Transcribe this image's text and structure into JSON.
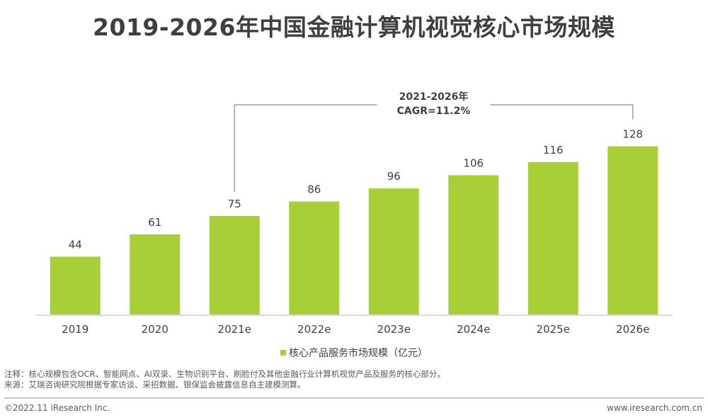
{
  "title": "2019-2026年中国金融计算机视觉核心市场规模",
  "chart_data": {
    "type": "bar",
    "title": "2019-2026年中国金融计算机视觉核心市场规模",
    "categories": [
      "2019",
      "2020",
      "2021e",
      "2022e",
      "2023e",
      "2024e",
      "2025e",
      "2026e"
    ],
    "series": [
      {
        "name": "核心产品服务市场规模（亿元）",
        "values": [
          44,
          61,
          75,
          86,
          96,
          106,
          116,
          128
        ],
        "color": "#a9cf38"
      }
    ],
    "xlabel": "",
    "ylabel": "",
    "ylim": [
      0,
      140
    ],
    "grid": false,
    "legend_position": "bottom",
    "annotation": {
      "line1": "2021-2026年",
      "line2": "CAGR=11.2%",
      "from": "2021e",
      "to": "2026e"
    }
  },
  "legend": {
    "label": "核心产品服务市场规模（亿元）"
  },
  "notes": {
    "note": "注释：核心规模包含OCR、智能网点、AI双录、生物识别平台、刷脸付及其他金融行业计算机视觉产品及服务的核心部分。",
    "source": "来源：艾瑞咨询研究院根据专家访谈、采招数据、银保监会披露信息自主建模测算。"
  },
  "footer": {
    "copyright": "©2022.11 iResearch Inc.",
    "website": "www.iresearch.com.cn"
  }
}
